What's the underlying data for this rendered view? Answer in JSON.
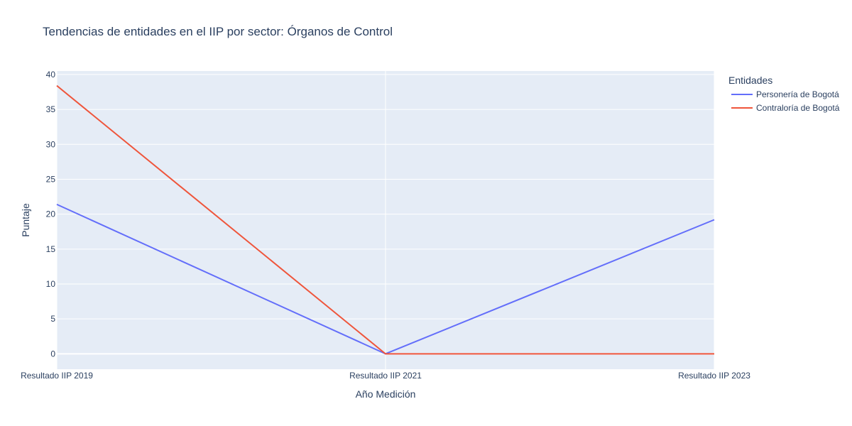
{
  "chart_data": {
    "type": "line",
    "title": "Tendencias de entidades en el IIP por sector: Órganos de Control",
    "xlabel": "Año Medición",
    "ylabel": "Puntaje",
    "categories": [
      "Resultado IIP 2019",
      "Resultado IIP 2021",
      "Resultado IIP 2023"
    ],
    "ylim": [
      -2.2,
      40.5
    ],
    "yticks": [
      0,
      5,
      10,
      15,
      20,
      25,
      30,
      35,
      40
    ],
    "grid": true,
    "legend": {
      "title": "Entidades",
      "placement": "top-right"
    },
    "series": [
      {
        "name": "Personería de Bogotá",
        "color": "#636efa",
        "values": [
          21.4,
          0,
          19.2
        ]
      },
      {
        "name": "Contraloría de Bogotá",
        "color": "#ef553b",
        "values": [
          38.4,
          0,
          0
        ]
      }
    ]
  }
}
